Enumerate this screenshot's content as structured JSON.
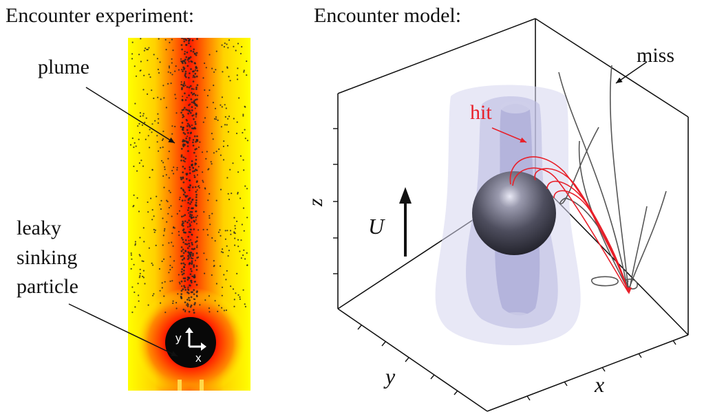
{
  "panels": {
    "experiment": {
      "title": "Encounter experiment:",
      "labels": {
        "plume": "plume",
        "particle_line1": "leaky",
        "particle_line2": "sinking",
        "particle_line3": "particle"
      },
      "axes": {
        "x": "x",
        "y": "y"
      }
    },
    "model": {
      "title": "Encounter model:",
      "labels": {
        "miss": "miss",
        "hit": "hit",
        "flow": "U"
      },
      "axes": {
        "x": "x",
        "y": "y",
        "z": "z"
      }
    }
  },
  "colors": {
    "hit": "#e8202a",
    "miss": "#555555",
    "plume_core": "#ff1a00",
    "plume_edge": "#ffff00"
  }
}
